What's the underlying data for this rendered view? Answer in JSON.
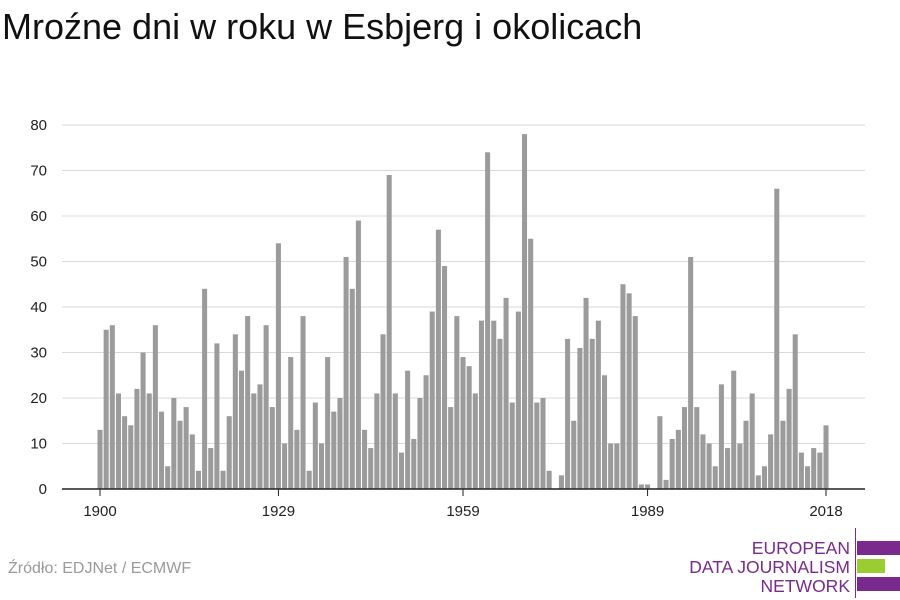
{
  "title": "Mroźne dni w roku w Esbjerg i okolicach",
  "source": "Źródło: EDJNet / ECMWF",
  "logo": {
    "line1": "EUROPEAN",
    "line2": "DATA JOURNALISM",
    "line3": "NETWORK",
    "purple": "#7a2a8c",
    "green": "#9acd32"
  },
  "colors": {
    "bar": "#9b9b9b",
    "grid": "#d9d9d9",
    "axis": "#222222",
    "tick_text": "#222222"
  },
  "chart_data": {
    "type": "bar",
    "x_start": 1900,
    "x_end": 2018,
    "xticks": [
      1900,
      1929,
      1959,
      1989,
      2018
    ],
    "ylim": [
      0,
      80
    ],
    "yticks": [
      0,
      10,
      20,
      30,
      40,
      50,
      60,
      70,
      80
    ],
    "grid": "horizontal",
    "values": [
      13,
      35,
      36,
      21,
      16,
      14,
      22,
      30,
      21,
      36,
      17,
      5,
      20,
      15,
      18,
      12,
      4,
      44,
      9,
      32,
      4,
      16,
      34,
      26,
      38,
      21,
      23,
      36,
      18,
      54,
      10,
      29,
      13,
      38,
      4,
      19,
      10,
      29,
      17,
      20,
      51,
      44,
      59,
      13,
      9,
      21,
      34,
      69,
      21,
      8,
      26,
      11,
      20,
      25,
      39,
      57,
      49,
      18,
      38,
      29,
      27,
      21,
      37,
      74,
      37,
      33,
      42,
      19,
      39,
      78,
      55,
      19,
      20,
      4,
      0,
      3,
      33,
      15,
      31,
      42,
      33,
      37,
      25,
      10,
      10,
      45,
      43,
      38,
      1,
      1,
      0,
      16,
      2,
      11,
      13,
      18,
      51,
      18,
      12,
      10,
      5,
      23,
      9,
      26,
      10,
      15,
      21,
      3,
      5,
      12,
      66,
      15,
      22,
      34,
      8,
      5,
      9,
      8,
      14
    ]
  }
}
